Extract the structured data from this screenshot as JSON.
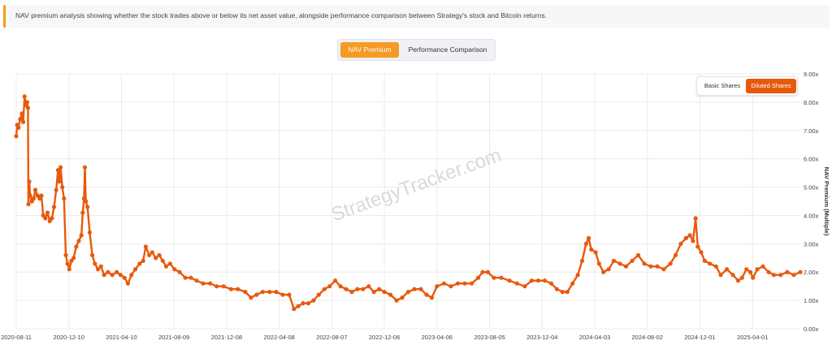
{
  "info": {
    "text": "NAV premium analysis showing whether the stock trades above or below its net asset value, alongside performance comparison between Strategy's stock and Bitcoin returns."
  },
  "tabs": [
    {
      "label": "NAV Premium",
      "active": true
    },
    {
      "label": "Performance Comparison",
      "active": false
    }
  ],
  "share_toggle": [
    {
      "label": "Basic Shares",
      "active": false
    },
    {
      "label": "Diluted Shares",
      "active": true
    }
  ],
  "watermark": "StrategyTracker.com",
  "colors": {
    "accent": "#f59a23",
    "line": "#e8590c"
  },
  "chart_data": {
    "type": "line",
    "ylabel": "NAV Premium (Multiple)",
    "ylim": [
      0,
      9
    ],
    "y_ticks": [
      "0.00x",
      "1.00x",
      "2.00x",
      "3.00x",
      "4.00x",
      "5.00x",
      "6.00x",
      "7.00x",
      "8.00x",
      "9.00x"
    ],
    "x_range": [
      "2020-08-11",
      "2025-07-20"
    ],
    "x_ticks": [
      "2020-08-11",
      "2020-12-10",
      "2021-04-10",
      "2021-08-09",
      "2021-12-08",
      "2022-04-08",
      "2022-08-07",
      "2022-12-06",
      "2023-04-06",
      "2023-08-05",
      "2023-12-04",
      "2024-04-03",
      "2024-08-02",
      "2024-12-01",
      "2025-04-01"
    ],
    "grid": true,
    "markers": true,
    "series": [
      {
        "points": [
          [
            "2020-08-11",
            6.8
          ],
          [
            "2020-08-13",
            7.2
          ],
          [
            "2020-08-16",
            7.1
          ],
          [
            "2020-08-20",
            7.4
          ],
          [
            "2020-08-24",
            7.6
          ],
          [
            "2020-08-27",
            7.3
          ],
          [
            "2020-08-30",
            8.2
          ],
          [
            "2020-09-02",
            7.9
          ],
          [
            "2020-09-05",
            8.0
          ],
          [
            "2020-09-07",
            7.8
          ],
          [
            "2020-09-08",
            4.4
          ],
          [
            "2020-09-10",
            5.2
          ],
          [
            "2020-09-12",
            4.7
          ],
          [
            "2020-09-16",
            4.5
          ],
          [
            "2020-09-20",
            4.6
          ],
          [
            "2020-09-24",
            4.9
          ],
          [
            "2020-09-29",
            4.7
          ],
          [
            "2020-10-04",
            4.6
          ],
          [
            "2020-10-08",
            4.7
          ],
          [
            "2020-10-12",
            4.0
          ],
          [
            "2020-10-17",
            3.9
          ],
          [
            "2020-10-22",
            4.1
          ],
          [
            "2020-10-27",
            3.8
          ],
          [
            "2020-11-01",
            3.9
          ],
          [
            "2020-11-06",
            4.3
          ],
          [
            "2020-11-11",
            4.9
          ],
          [
            "2020-11-15",
            5.6
          ],
          [
            "2020-11-18",
            5.2
          ],
          [
            "2020-11-21",
            5.7
          ],
          [
            "2020-11-25",
            5.0
          ],
          [
            "2020-11-29",
            4.6
          ],
          [
            "2020-12-03",
            2.6
          ],
          [
            "2020-12-07",
            2.3
          ],
          [
            "2020-12-11",
            2.1
          ],
          [
            "2020-12-16",
            2.4
          ],
          [
            "2020-12-21",
            2.5
          ],
          [
            "2020-12-27",
            2.9
          ],
          [
            "2021-01-02",
            3.1
          ],
          [
            "2021-01-08",
            3.3
          ],
          [
            "2021-01-11",
            4.1
          ],
          [
            "2021-01-14",
            4.6
          ],
          [
            "2021-01-16",
            5.7
          ],
          [
            "2021-01-18",
            4.5
          ],
          [
            "2021-01-22",
            4.3
          ],
          [
            "2021-01-27",
            3.4
          ],
          [
            "2021-02-02",
            2.6
          ],
          [
            "2021-02-08",
            2.3
          ],
          [
            "2021-02-15",
            2.1
          ],
          [
            "2021-02-22",
            2.2
          ],
          [
            "2021-03-01",
            1.9
          ],
          [
            "2021-03-10",
            2.0
          ],
          [
            "2021-03-20",
            1.9
          ],
          [
            "2021-03-30",
            2.0
          ],
          [
            "2021-04-08",
            1.9
          ],
          [
            "2021-04-17",
            1.8
          ],
          [
            "2021-04-25",
            1.6
          ],
          [
            "2021-05-03",
            1.9
          ],
          [
            "2021-05-12",
            2.1
          ],
          [
            "2021-05-22",
            2.3
          ],
          [
            "2021-05-30",
            2.4
          ],
          [
            "2021-06-05",
            2.9
          ],
          [
            "2021-06-13",
            2.6
          ],
          [
            "2021-06-20",
            2.7
          ],
          [
            "2021-06-28",
            2.5
          ],
          [
            "2021-07-06",
            2.6
          ],
          [
            "2021-07-14",
            2.4
          ],
          [
            "2021-07-22",
            2.2
          ],
          [
            "2021-07-31",
            2.3
          ],
          [
            "2021-08-10",
            2.1
          ],
          [
            "2021-08-22",
            2.0
          ],
          [
            "2021-09-04",
            1.8
          ],
          [
            "2021-09-17",
            1.8
          ],
          [
            "2021-09-30",
            1.7
          ],
          [
            "2021-10-15",
            1.6
          ],
          [
            "2021-10-31",
            1.6
          ],
          [
            "2021-11-15",
            1.5
          ],
          [
            "2021-12-01",
            1.5
          ],
          [
            "2021-12-18",
            1.4
          ],
          [
            "2022-01-03",
            1.4
          ],
          [
            "2022-01-20",
            1.3
          ],
          [
            "2022-02-02",
            1.1
          ],
          [
            "2022-02-15",
            1.2
          ],
          [
            "2022-03-01",
            1.3
          ],
          [
            "2022-03-17",
            1.3
          ],
          [
            "2022-04-01",
            1.3
          ],
          [
            "2022-04-16",
            1.2
          ],
          [
            "2022-05-01",
            1.2
          ],
          [
            "2022-05-12",
            0.7
          ],
          [
            "2022-05-22",
            0.8
          ],
          [
            "2022-06-02",
            0.9
          ],
          [
            "2022-06-14",
            0.9
          ],
          [
            "2022-06-26",
            1.0
          ],
          [
            "2022-07-08",
            1.2
          ],
          [
            "2022-07-21",
            1.4
          ],
          [
            "2022-08-02",
            1.5
          ],
          [
            "2022-08-15",
            1.7
          ],
          [
            "2022-08-27",
            1.5
          ],
          [
            "2022-09-09",
            1.4
          ],
          [
            "2022-09-22",
            1.3
          ],
          [
            "2022-10-05",
            1.4
          ],
          [
            "2022-10-18",
            1.4
          ],
          [
            "2022-10-31",
            1.5
          ],
          [
            "2022-11-12",
            1.3
          ],
          [
            "2022-11-24",
            1.4
          ],
          [
            "2022-12-06",
            1.3
          ],
          [
            "2022-12-20",
            1.2
          ],
          [
            "2023-01-03",
            1.0
          ],
          [
            "2023-01-16",
            1.1
          ],
          [
            "2023-01-30",
            1.3
          ],
          [
            "2023-02-13",
            1.4
          ],
          [
            "2023-02-28",
            1.4
          ],
          [
            "2023-03-13",
            1.2
          ],
          [
            "2023-03-25",
            1.1
          ],
          [
            "2023-04-06",
            1.5
          ],
          [
            "2023-04-22",
            1.6
          ],
          [
            "2023-05-08",
            1.5
          ],
          [
            "2023-05-24",
            1.6
          ],
          [
            "2023-06-09",
            1.6
          ],
          [
            "2023-06-25",
            1.6
          ],
          [
            "2023-07-10",
            1.8
          ],
          [
            "2023-07-20",
            2.0
          ],
          [
            "2023-08-01",
            2.0
          ],
          [
            "2023-08-15",
            1.8
          ],
          [
            "2023-09-01",
            1.8
          ],
          [
            "2023-09-20",
            1.7
          ],
          [
            "2023-10-07",
            1.6
          ],
          [
            "2023-10-25",
            1.5
          ],
          [
            "2023-11-10",
            1.7
          ],
          [
            "2023-11-25",
            1.7
          ],
          [
            "2023-12-10",
            1.7
          ],
          [
            "2023-12-25",
            1.6
          ],
          [
            "2024-01-07",
            1.4
          ],
          [
            "2024-01-20",
            1.3
          ],
          [
            "2024-01-31",
            1.3
          ],
          [
            "2024-02-12",
            1.6
          ],
          [
            "2024-02-24",
            1.9
          ],
          [
            "2024-03-05",
            2.4
          ],
          [
            "2024-03-14",
            3.0
          ],
          [
            "2024-03-20",
            3.2
          ],
          [
            "2024-03-26",
            2.8
          ],
          [
            "2024-04-05",
            2.7
          ],
          [
            "2024-04-13",
            2.3
          ],
          [
            "2024-04-23",
            2.0
          ],
          [
            "2024-05-05",
            2.1
          ],
          [
            "2024-05-17",
            2.4
          ],
          [
            "2024-05-31",
            2.3
          ],
          [
            "2024-06-14",
            2.2
          ],
          [
            "2024-06-28",
            2.4
          ],
          [
            "2024-07-12",
            2.6
          ],
          [
            "2024-07-26",
            2.3
          ],
          [
            "2024-08-10",
            2.2
          ],
          [
            "2024-08-25",
            2.2
          ],
          [
            "2024-09-09",
            2.1
          ],
          [
            "2024-09-24",
            2.3
          ],
          [
            "2024-10-06",
            2.6
          ],
          [
            "2024-10-18",
            3.0
          ],
          [
            "2024-10-30",
            3.2
          ],
          [
            "2024-11-08",
            3.3
          ],
          [
            "2024-11-15",
            3.1
          ],
          [
            "2024-11-21",
            3.9
          ],
          [
            "2024-11-26",
            2.9
          ],
          [
            "2024-12-04",
            2.7
          ],
          [
            "2024-12-12",
            2.4
          ],
          [
            "2024-12-24",
            2.3
          ],
          [
            "2025-01-07",
            2.2
          ],
          [
            "2025-01-18",
            1.9
          ],
          [
            "2025-02-01",
            2.1
          ],
          [
            "2025-02-15",
            1.9
          ],
          [
            "2025-02-27",
            1.7
          ],
          [
            "2025-03-08",
            1.8
          ],
          [
            "2025-03-18",
            2.1
          ],
          [
            "2025-03-27",
            2.0
          ],
          [
            "2025-04-02",
            1.8
          ],
          [
            "2025-04-12",
            2.1
          ],
          [
            "2025-04-25",
            2.2
          ],
          [
            "2025-05-08",
            2.0
          ],
          [
            "2025-05-20",
            1.9
          ],
          [
            "2025-06-05",
            1.9
          ],
          [
            "2025-06-20",
            2.0
          ],
          [
            "2025-07-05",
            1.9
          ],
          [
            "2025-07-20",
            2.0
          ]
        ]
      }
    ]
  }
}
